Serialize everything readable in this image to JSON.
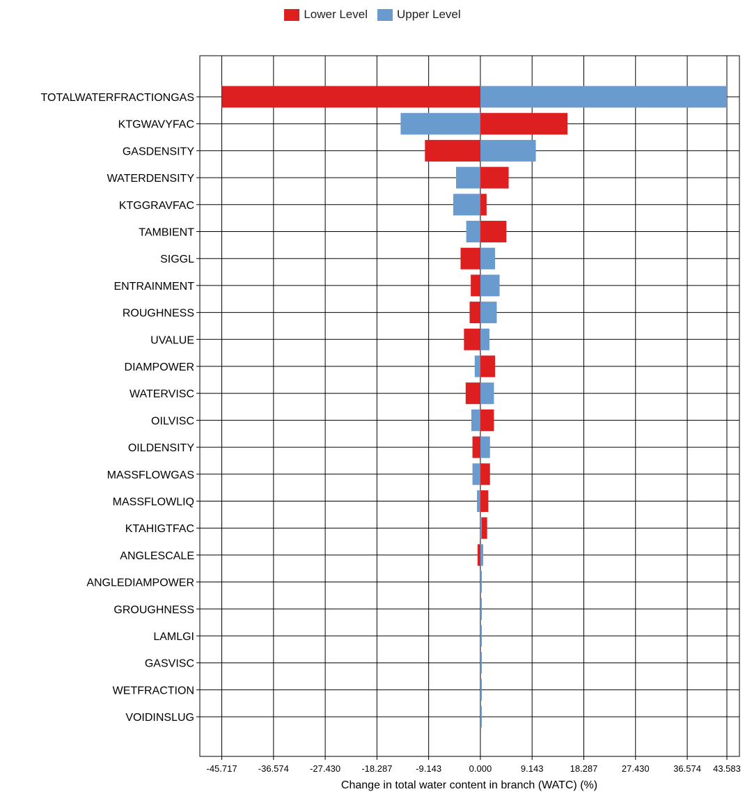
{
  "colors": {
    "lower": "#dd1f1f",
    "upper": "#6a9bce",
    "grid": "#000000"
  },
  "legend": {
    "lower_label": "Lower Level",
    "upper_label": "Upper Level",
    "placement": "top-center"
  },
  "chart_data": {
    "type": "bar",
    "orientation": "horizontal",
    "title": "",
    "xlabel": "Change in total water content in branch (WATC) (%)",
    "ylabel": "",
    "xlim": [
      -49.6,
      45.8
    ],
    "grid": true,
    "x_ticks": [
      -45.717,
      -36.574,
      -27.43,
      -18.287,
      -9.143,
      0.0,
      9.143,
      18.287,
      27.43,
      36.574,
      43.583
    ],
    "x_tick_labels": [
      "-45.717",
      "-36.574",
      "-27.430",
      "-18.287",
      "-9.143",
      "0.000",
      "9.143",
      "18.287",
      "27.430",
      "36.574",
      "43.583"
    ],
    "categories": [
      "TOTALWATERFRACTIONGAS",
      "KTGWAVYFAC",
      "GASDENSITY",
      "WATERDENSITY",
      "KTGGRAVFAC",
      "TAMBIENT",
      "SIGGL",
      "ENTRAINMENT",
      "ROUGHNESS",
      "UVALUE",
      "DIAMPOWER",
      "WATERVISC",
      "OILVISC",
      "OILDENSITY",
      "MASSFLOWGAS",
      "MASSFLOWLIQ",
      "KTAHIGTFAC",
      "ANGLESCALE",
      "ANGLEDIAMPOWER",
      "GROUGHNESS",
      "LAMLGI",
      "GASVISC",
      "WETFRACTION",
      "VOIDINSLUG"
    ],
    "series": [
      {
        "name": "Lower Level",
        "values": [
          -45.717,
          15.4,
          -9.8,
          5.0,
          1.1,
          4.6,
          -3.5,
          -1.7,
          -1.9,
          -2.9,
          2.6,
          -2.6,
          2.4,
          -1.4,
          1.7,
          1.4,
          1.2,
          -0.5,
          0.2,
          0.15,
          0.1,
          0.1,
          0.1,
          0.1
        ]
      },
      {
        "name": "Upper Level",
        "values": [
          43.583,
          -14.1,
          9.8,
          -4.3,
          -4.8,
          -2.5,
          2.6,
          3.4,
          2.9,
          1.6,
          -1.0,
          2.4,
          -1.6,
          1.7,
          -1.4,
          -0.6,
          0.0,
          0.5,
          0.2,
          0.15,
          0.1,
          0.1,
          0.1,
          0.1
        ]
      }
    ]
  }
}
